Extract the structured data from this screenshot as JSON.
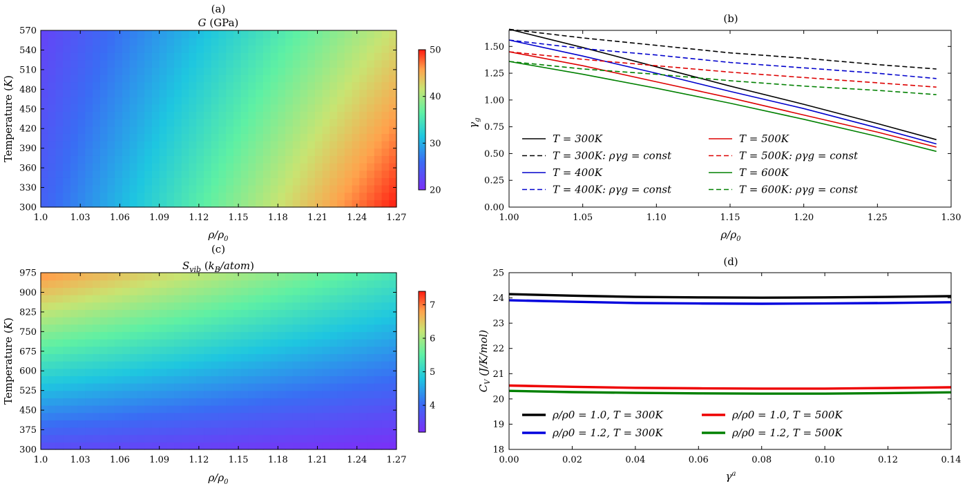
{
  "chart_data": [
    {
      "panel": "(a)",
      "type": "heatmap",
      "title": "G (GPa)",
      "xlabel": "ρ/ρ0",
      "ylabel": "Temperature (K)",
      "xticks": [
        "1.0",
        "1.03",
        "1.06",
        "1.09",
        "1.12",
        "1.15",
        "1.18",
        "1.21",
        "1.24",
        "1.27"
      ],
      "yticks": [
        "300",
        "330",
        "360",
        "390",
        "420",
        "450",
        "480",
        "510",
        "540",
        "570"
      ],
      "xlim": [
        1.0,
        1.27
      ],
      "ylim": [
        300,
        570
      ],
      "colorbar": {
        "min": 20,
        "max": 50,
        "ticks": [
          "20",
          "30",
          "40",
          "50"
        ]
      },
      "corner_values": {
        "x1.0_T300": 25,
        "x1.0_T570": 22,
        "x1.27_T300": 50,
        "x1.27_T570": 42
      },
      "colormap": "rainbow"
    },
    {
      "panel": "(b)",
      "type": "line",
      "title": "",
      "xlabel": "ρ/ρ0",
      "ylabel": "γg",
      "xlim": [
        1.0,
        1.3
      ],
      "ylim": [
        0.0,
        1.65
      ],
      "xticks": [
        "1.00",
        "1.05",
        "1.10",
        "1.15",
        "1.20",
        "1.25",
        "1.30"
      ],
      "yticks": [
        "0.00",
        "0.25",
        "0.50",
        "0.75",
        "1.00",
        "1.25",
        "1.50"
      ],
      "x": [
        1.0,
        1.05,
        1.1,
        1.15,
        1.2,
        1.25,
        1.29
      ],
      "legend_position": "lower-left",
      "series": [
        {
          "name": "T = 300K",
          "color": "#000000",
          "dashed": false,
          "values": [
            1.66,
            1.49,
            1.31,
            1.13,
            0.96,
            0.78,
            0.63
          ]
        },
        {
          "name": "T = 300K: ργg = const",
          "color": "#000000",
          "dashed": true,
          "values": [
            1.66,
            1.58,
            1.51,
            1.44,
            1.39,
            1.33,
            1.29
          ]
        },
        {
          "name": "T = 400K",
          "color": "#0000cc",
          "dashed": false,
          "values": [
            1.56,
            1.41,
            1.25,
            1.08,
            0.92,
            0.74,
            0.59
          ]
        },
        {
          "name": "T = 400K: ργg = const",
          "color": "#0000cc",
          "dashed": true,
          "values": [
            1.56,
            1.48,
            1.42,
            1.35,
            1.3,
            1.25,
            1.2
          ]
        },
        {
          "name": "T = 500K",
          "color": "#dd0000",
          "dashed": false,
          "values": [
            1.45,
            1.32,
            1.17,
            1.02,
            0.86,
            0.7,
            0.56
          ]
        },
        {
          "name": "T = 500K: ργg = const",
          "color": "#dd0000",
          "dashed": true,
          "values": [
            1.45,
            1.38,
            1.32,
            1.26,
            1.21,
            1.16,
            1.12
          ]
        },
        {
          "name": "T = 600K",
          "color": "#008000",
          "dashed": false,
          "values": [
            1.36,
            1.24,
            1.11,
            0.97,
            0.82,
            0.66,
            0.52
          ]
        },
        {
          "name": "T = 600K: ργg = const",
          "color": "#008000",
          "dashed": true,
          "values": [
            1.36,
            1.29,
            1.24,
            1.18,
            1.13,
            1.09,
            1.05
          ]
        }
      ]
    },
    {
      "panel": "(c)",
      "type": "heatmap",
      "title": "Svib (kB/atom)",
      "xlabel": "ρ/ρ0",
      "ylabel": "Temperature (K)",
      "xticks": [
        "1.0",
        "1.03",
        "1.06",
        "1.09",
        "1.12",
        "1.15",
        "1.18",
        "1.21",
        "1.24",
        "1.27"
      ],
      "yticks": [
        "300",
        "375",
        "450",
        "525",
        "600",
        "675",
        "750",
        "825",
        "900",
        "975"
      ],
      "xlim": [
        1.0,
        1.27
      ],
      "ylim": [
        300,
        975
      ],
      "colorbar": {
        "min": 3.2,
        "max": 7.4,
        "ticks": [
          "4",
          "5",
          "6",
          "7"
        ]
      },
      "corner_values": {
        "x1.0_T300": 3.6,
        "x1.0_T975": 6.9,
        "x1.27_T300": 3.2,
        "x1.27_T975": 5.3
      },
      "colormap": "rainbow"
    },
    {
      "panel": "(d)",
      "type": "line",
      "title": "",
      "xlabel": "γa",
      "ylabel": "CV (J/K/mol)",
      "xlim": [
        0.0,
        0.14
      ],
      "ylim": [
        18,
        25
      ],
      "xticks": [
        "0.00",
        "0.02",
        "0.04",
        "0.06",
        "0.08",
        "0.10",
        "0.12",
        "0.14"
      ],
      "yticks": [
        "18",
        "19",
        "20",
        "21",
        "22",
        "23",
        "24",
        "25"
      ],
      "x": [
        0.0,
        0.02,
        0.04,
        0.06,
        0.08,
        0.1,
        0.12,
        0.14
      ],
      "legend_position": "lower-left",
      "series": [
        {
          "name": "ρ/ρ0 = 1.0, T = 300K",
          "color": "#000000",
          "values": [
            24.15,
            24.09,
            24.04,
            24.02,
            24.01,
            24.02,
            24.04,
            24.07
          ]
        },
        {
          "name": "ρ/ρ0 = 1.2, T = 300K",
          "color": "#0000dd",
          "values": [
            23.91,
            23.85,
            23.8,
            23.78,
            23.77,
            23.78,
            23.8,
            23.83
          ]
        },
        {
          "name": "ρ/ρ0 = 1.0, T = 500K",
          "color": "#ee0000",
          "values": [
            20.53,
            20.48,
            20.44,
            20.42,
            20.41,
            20.41,
            20.43,
            20.46
          ]
        },
        {
          "name": "ρ/ρ0 = 1.2, T = 500K",
          "color": "#008000",
          "values": [
            20.32,
            20.27,
            20.24,
            20.22,
            20.21,
            20.21,
            20.23,
            20.26
          ]
        }
      ]
    }
  ],
  "labels": {
    "panel_a": "(a)",
    "panel_b": "(b)",
    "panel_c": "(c)",
    "panel_d": "(d)",
    "title_a_sym": "G",
    "title_a_unit": "(GPa)",
    "title_c_sym": "S",
    "title_c_sub": "vib",
    "title_c_unit_k": "k",
    "title_c_unit_sub": "B",
    "title_c_unit_rest": "/atom",
    "temperature_label": "Temperature",
    "temperature_unit": "K",
    "rho": "ρ/ρ",
    "rho_sub": "0",
    "gamma_g": "γ",
    "gamma_g_sub": "g",
    "gamma_a": "γ",
    "gamma_a_sup": "a",
    "cv_sym": "C",
    "cv_sub": "V",
    "cv_unit": "(J/K/mol)"
  }
}
